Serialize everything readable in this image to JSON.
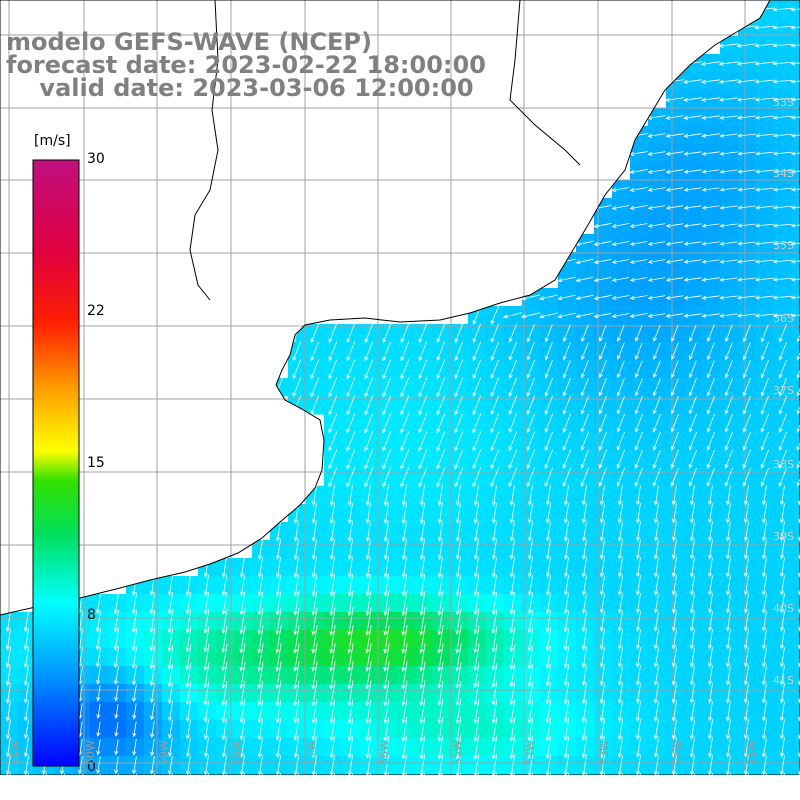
{
  "titles": {
    "model": "modelo GEFS-WAVE (NCEP)",
    "forecast": "forecast date: 2023-02-22 18:00:00",
    "valid": "    valid date: 2023-03-06 12:00:00"
  },
  "colorbar": {
    "unit": "[m/s]",
    "ticks": [
      "30",
      "22",
      "15",
      "8",
      "0"
    ],
    "tick_values": [
      30,
      22,
      15,
      8,
      0
    ],
    "range": [
      0,
      30
    ]
  },
  "lat_labels": [
    "33S",
    "34S",
    "35S",
    "36S",
    "37S",
    "38S",
    "39S",
    "40S",
    "41S"
  ],
  "lon_labels": [
    "61W",
    "60W",
    "59W",
    "58W",
    "57W",
    "56W",
    "55W",
    "54W",
    "53W",
    "52W",
    "51W"
  ],
  "colors": {
    "land": "#ffffff",
    "grid": "#a0a0a0",
    "coast": "#000000",
    "arrow": "#ffffff",
    "title": "#808080"
  }
}
